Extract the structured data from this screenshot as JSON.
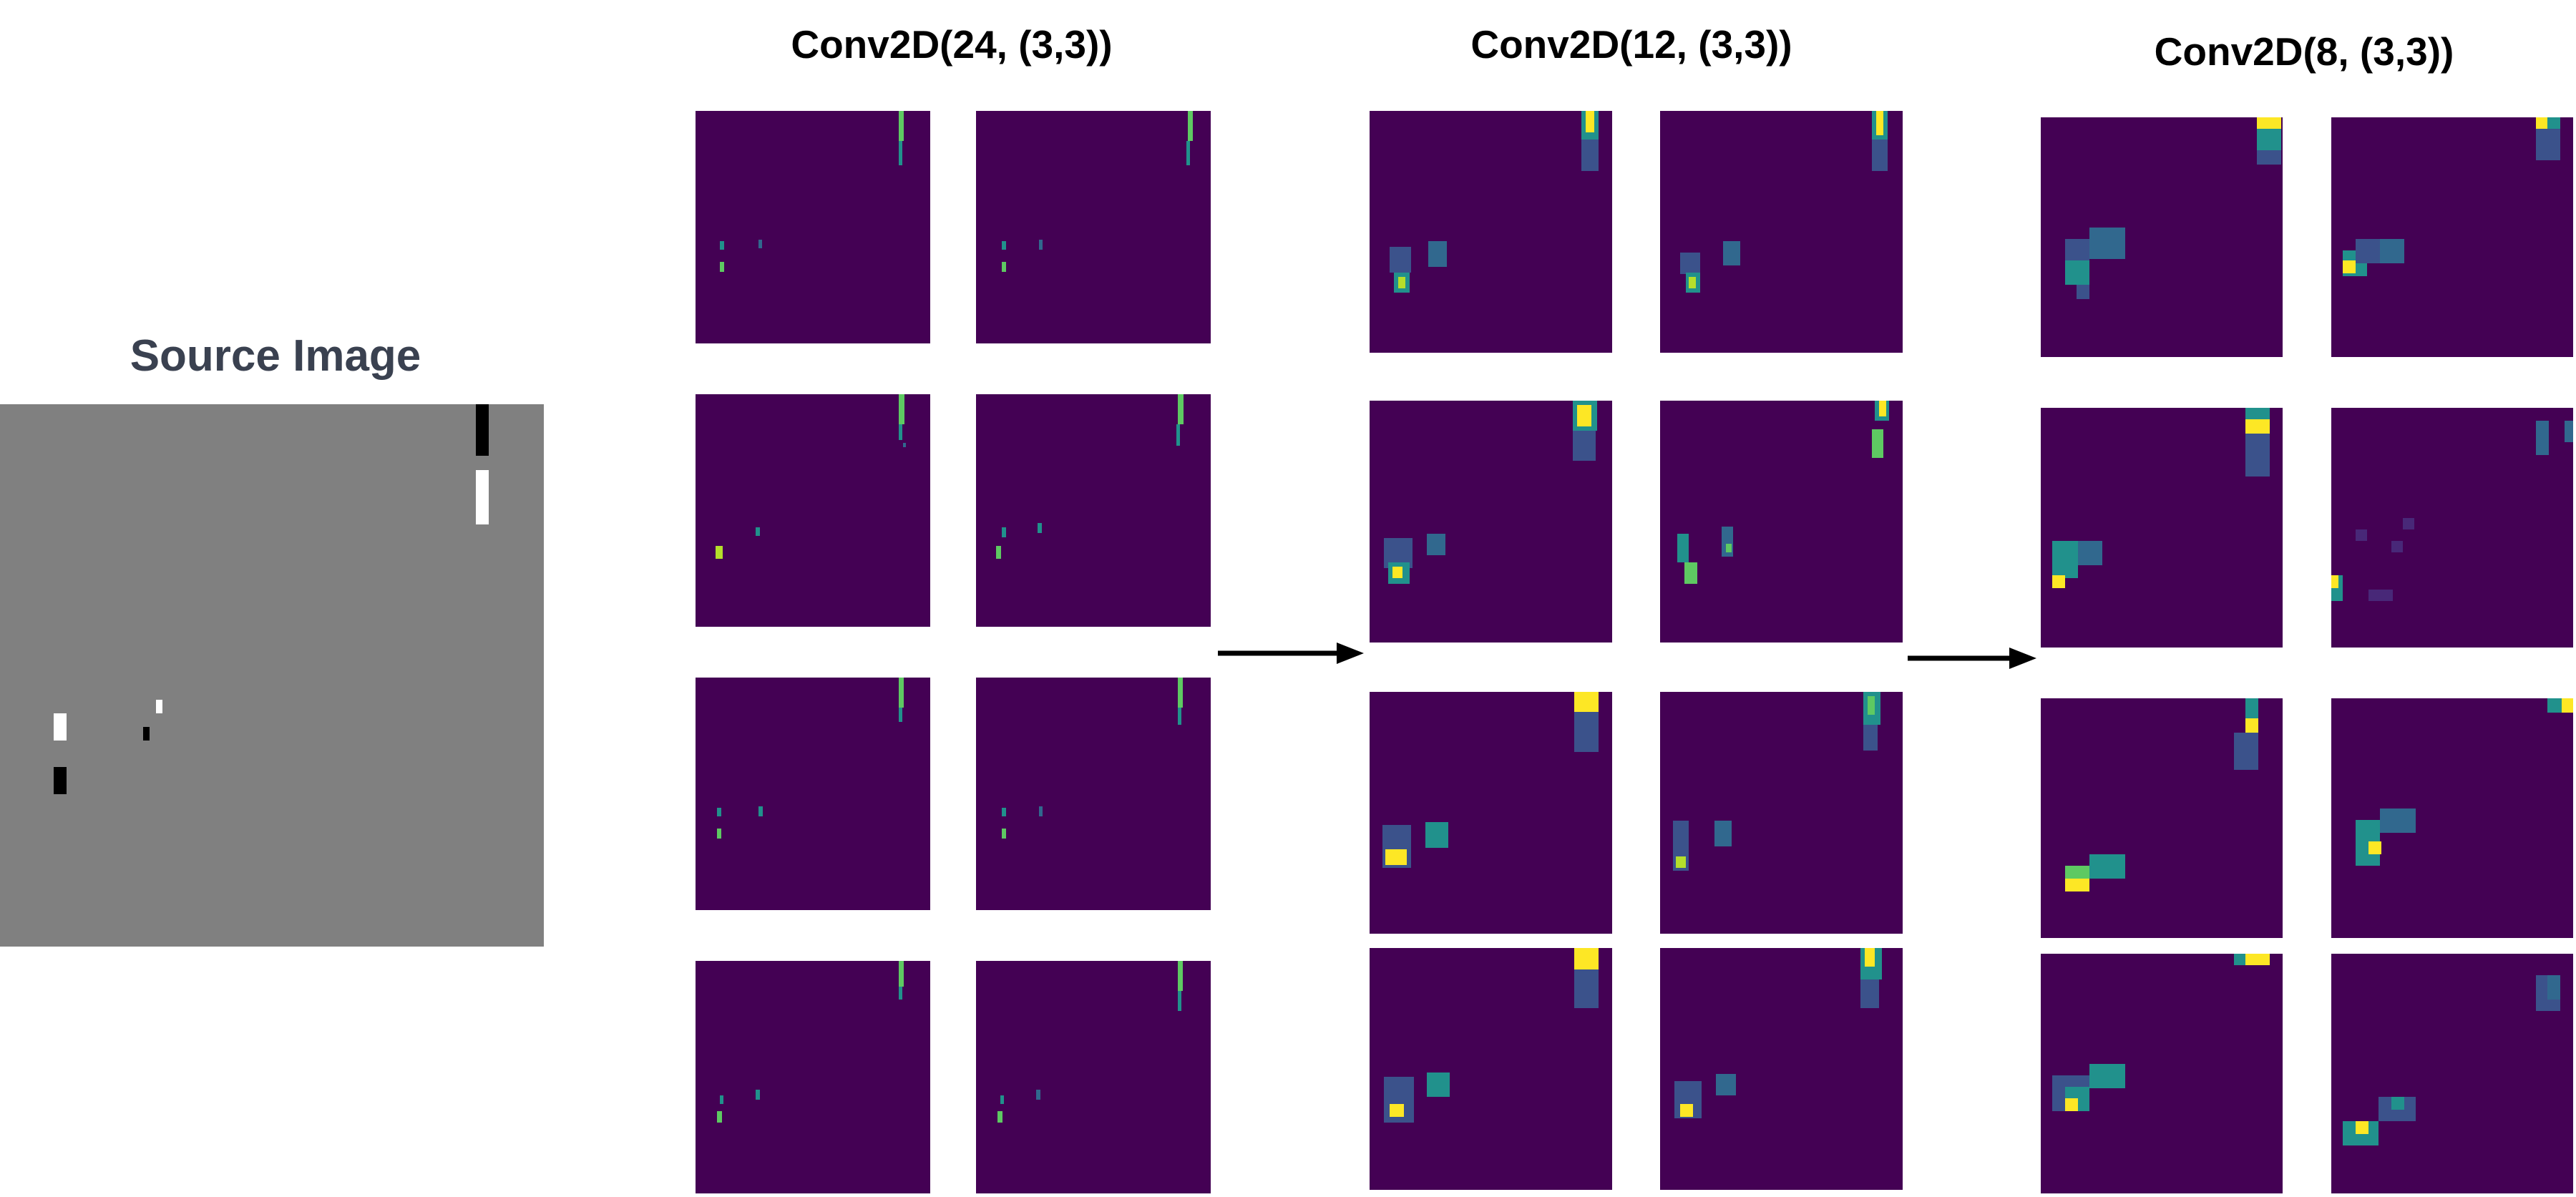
{
  "source": {
    "title": "Source Image"
  },
  "layers": [
    {
      "title": "Conv2D(24, (3,3))"
    },
    {
      "title": "Conv2D(12, (3,3))"
    },
    {
      "title": "Conv2D(8, (3,3))"
    }
  ],
  "colors": {
    "background": "#ffffff",
    "source_gray": "#808080",
    "map_base": "#440154",
    "teal": "#21918c",
    "green": "#5ec962",
    "yellow": "#fde725"
  }
}
